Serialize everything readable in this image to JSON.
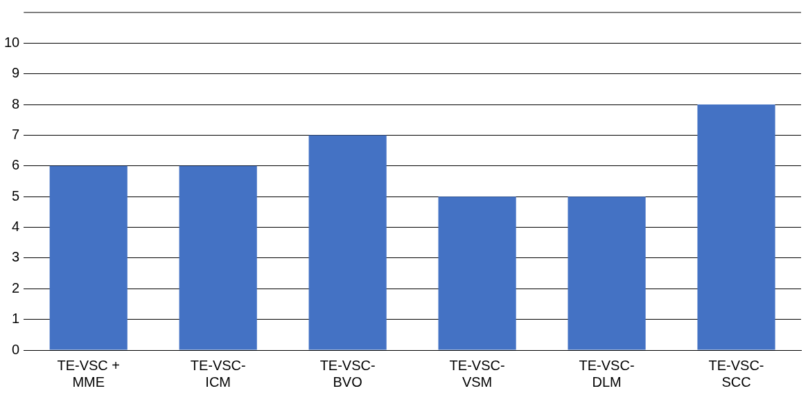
{
  "chart_data": {
    "type": "bar",
    "categories": [
      "TE-VSC + MME",
      "TE-VSC-ICM",
      "TE-VSC-BVO",
      "TE-VSC-VSM",
      "TE-VSC-DLM",
      "TE-VSC-SCC"
    ],
    "values": [
      6,
      6,
      7,
      5,
      5,
      8
    ],
    "color": "#4472c4",
    "ylim": [
      0,
      11
    ],
    "yticks": [
      0,
      1,
      2,
      3,
      4,
      5,
      6,
      7,
      8,
      9,
      10
    ],
    "grid": "y",
    "legend": false
  }
}
